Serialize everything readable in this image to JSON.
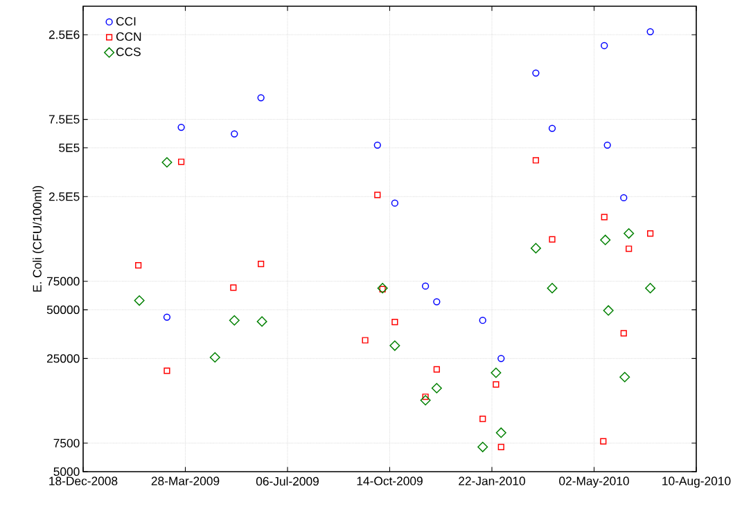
{
  "chart_data": {
    "type": "scatter",
    "ylabel": "E. Coli (CFU/100ml)",
    "log": "y",
    "grid": true,
    "legend": "top left",
    "xlim": [
      "2008-12-18",
      "2010-08-10"
    ],
    "xticks": [
      {
        "value": "2008-12-18",
        "label": "18-Dec-2008"
      },
      {
        "value": "2009-03-28",
        "label": "28-Mar-2009"
      },
      {
        "value": "2009-07-06",
        "label": "06-Jul-2009"
      },
      {
        "value": "2009-10-14",
        "label": "14-Oct-2009"
      },
      {
        "value": "2010-01-22",
        "label": "22-Jan-2010"
      },
      {
        "value": "2010-05-02",
        "label": "02-May-2010"
      },
      {
        "value": "2010-08-10",
        "label": "10-Aug-2010"
      }
    ],
    "ylim": [
      5000,
      3750000
    ],
    "yticks": [
      {
        "value": 5000,
        "label": "5000"
      },
      {
        "value": 7500,
        "label": "7500"
      },
      {
        "value": 25000,
        "label": "25000"
      },
      {
        "value": 50000,
        "label": "50000"
      },
      {
        "value": 75000,
        "label": "75000"
      },
      {
        "value": 250000,
        "label": "2.5E5"
      },
      {
        "value": 500000,
        "label": "5E5"
      },
      {
        "value": 750000,
        "label": "7.5E5"
      },
      {
        "value": 2500000,
        "label": "2.5E6"
      }
    ],
    "series": [
      {
        "name": "CCI",
        "color": "#0000ff",
        "marker": "circle",
        "x": [
          "2009-03-24",
          "2009-05-15",
          "2009-06-10",
          "2009-03-10",
          "2009-10-02",
          "2009-10-19",
          "2009-11-18",
          "2009-11-29",
          "2010-01-13",
          "2010-01-31",
          "2010-03-06",
          "2010-03-22",
          "2010-05-12",
          "2010-05-15",
          "2010-05-31",
          "2010-06-26"
        ],
        "values": [
          670000,
          610000,
          1020000,
          45000,
          520000,
          228000,
          70000,
          56000,
          43000,
          25000,
          1450000,
          660000,
          2140000,
          520000,
          246000,
          2610000
        ]
      },
      {
        "name": "CCN",
        "color": "#ff0000",
        "marker": "square",
        "x": [
          "2009-02-10",
          "2009-03-10",
          "2009-03-24",
          "2009-05-14",
          "2009-06-10",
          "2009-09-20",
          "2009-10-02",
          "2009-10-07",
          "2009-10-19",
          "2009-11-29",
          "2009-11-18",
          "2010-01-13",
          "2010-01-26",
          "2010-01-31",
          "2010-03-06",
          "2010-03-22",
          "2010-05-11",
          "2010-05-12",
          "2010-05-31",
          "2010-06-05",
          "2010-06-26"
        ],
        "values": [
          94000,
          21000,
          410000,
          68500,
          96000,
          32400,
          256000,
          67000,
          42000,
          21400,
          14500,
          10600,
          17300,
          7100,
          419000,
          136000,
          7700,
          187000,
          35800,
          119000,
          148000
        ]
      },
      {
        "name": "CCS",
        "color": "#008000",
        "marker": "diamond",
        "x": [
          "2009-02-11",
          "2009-03-10",
          "2009-04-26",
          "2009-05-15",
          "2009-06-11",
          "2009-10-07",
          "2009-10-19",
          "2009-11-18",
          "2009-11-29",
          "2010-01-13",
          "2010-01-26",
          "2010-01-31",
          "2010-03-06",
          "2010-03-22",
          "2010-05-13",
          "2010-05-16",
          "2010-06-01",
          "2010-06-05",
          "2010-06-26"
        ],
        "values": [
          57000,
          407000,
          25400,
          43000,
          42300,
          68000,
          30000,
          13800,
          16400,
          7100,
          20400,
          8700,
          120000,
          68000,
          135000,
          49500,
          19200,
          148000,
          68000
        ]
      }
    ]
  }
}
